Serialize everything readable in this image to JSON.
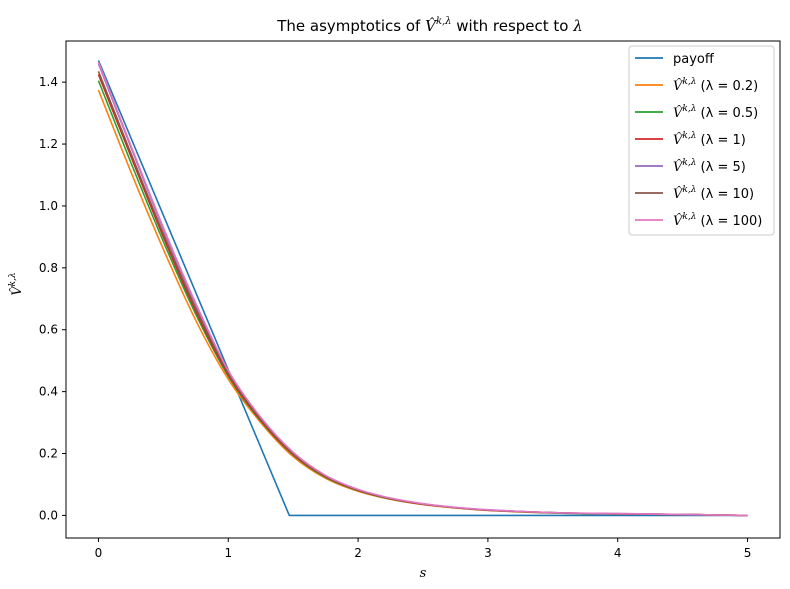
{
  "chart_data": {
    "type": "line",
    "title": "The asymptotics of V̂k,λ with respect to λ",
    "title_parts": {
      "pre": "The asymptotics of ",
      "sym": "V̂",
      "sup": "k,λ",
      "mid": " with respect to ",
      "lam": "λ"
    },
    "xlabel": "s",
    "ylabel": "V̂k,λ",
    "ylabel_parts": {
      "sym": "V̂",
      "sup": "k,λ"
    },
    "xlim": [
      -0.25,
      5.25
    ],
    "ylim": [
      -0.073,
      1.533
    ],
    "xticks": [
      "0",
      "1",
      "2",
      "3",
      "4",
      "5"
    ],
    "yticks": [
      "0.0",
      "0.2",
      "0.4",
      "0.6",
      "0.8",
      "1.0",
      "1.2",
      "1.4"
    ],
    "grid": false,
    "legend_position": "top-right",
    "x": [
      0,
      0.25,
      0.5,
      0.75,
      1.0,
      1.25,
      1.5,
      1.75,
      2.0,
      2.25,
      2.5,
      2.75,
      3.0,
      3.5,
      4.0,
      4.5,
      5.0
    ],
    "series": [
      {
        "name": "payoff",
        "label_sym": "",
        "label_sup": "",
        "label_text": "payoff",
        "color": "#1f77b4",
        "x": [
          0,
          1.47,
          5.0
        ],
        "y": [
          1.47,
          0.0,
          0.0
        ]
      },
      {
        "name": "V̂k,λ (λ = 0.2)",
        "label_sym": "V̂",
        "label_sup": "k,λ",
        "label_text": "(λ = 0.2)",
        "color": "#ff7f0e",
        "y": [
          1.375,
          1.11,
          0.86,
          0.63,
          0.44,
          0.3,
          0.19,
          0.12,
          0.078,
          0.052,
          0.035,
          0.024,
          0.016,
          0.008,
          0.005,
          0.003,
          0.0
        ]
      },
      {
        "name": "V̂k,λ (λ = 0.5)",
        "label_sym": "V̂",
        "label_sup": "k,λ",
        "label_text": "(λ = 0.5)",
        "color": "#2ca02c",
        "y": [
          1.405,
          1.14,
          0.885,
          0.65,
          0.45,
          0.305,
          0.195,
          0.123,
          0.08,
          0.053,
          0.036,
          0.025,
          0.017,
          0.008,
          0.005,
          0.003,
          0.0
        ]
      },
      {
        "name": "V̂k,λ (λ = 1)",
        "label_sym": "V̂",
        "label_sup": "k,λ",
        "label_text": "(λ = 1)",
        "color": "#d62728",
        "y": [
          1.425,
          1.16,
          0.9,
          0.66,
          0.455,
          0.308,
          0.197,
          0.125,
          0.081,
          0.054,
          0.036,
          0.025,
          0.017,
          0.009,
          0.005,
          0.003,
          0.0
        ]
      },
      {
        "name": "V̂k,λ (λ = 5)",
        "label_sym": "V̂",
        "label_sup": "k,λ",
        "label_text": "(λ = 5)",
        "color": "#9467bd",
        "y": [
          1.46,
          1.19,
          0.925,
          0.68,
          0.465,
          0.315,
          0.202,
          0.128,
          0.083,
          0.055,
          0.037,
          0.026,
          0.018,
          0.009,
          0.006,
          0.003,
          0.0
        ]
      },
      {
        "name": "V̂k,λ (λ = 10)",
        "label_sym": "V̂",
        "label_sup": "k,λ",
        "label_text": "(λ = 10)",
        "color": "#8c564b",
        "y": [
          1.435,
          1.17,
          0.91,
          0.668,
          0.46,
          0.311,
          0.199,
          0.126,
          0.082,
          0.054,
          0.037,
          0.025,
          0.017,
          0.009,
          0.005,
          0.003,
          0.0
        ]
      },
      {
        "name": "V̂k,λ (λ = 100)",
        "label_sym": "V̂",
        "label_sup": "k,λ",
        "label_text": "(λ = 100)",
        "color": "#e377c2",
        "y": [
          1.465,
          1.195,
          0.93,
          0.685,
          0.468,
          0.317,
          0.204,
          0.129,
          0.084,
          0.056,
          0.038,
          0.026,
          0.018,
          0.009,
          0.006,
          0.003,
          0.0
        ]
      }
    ]
  }
}
